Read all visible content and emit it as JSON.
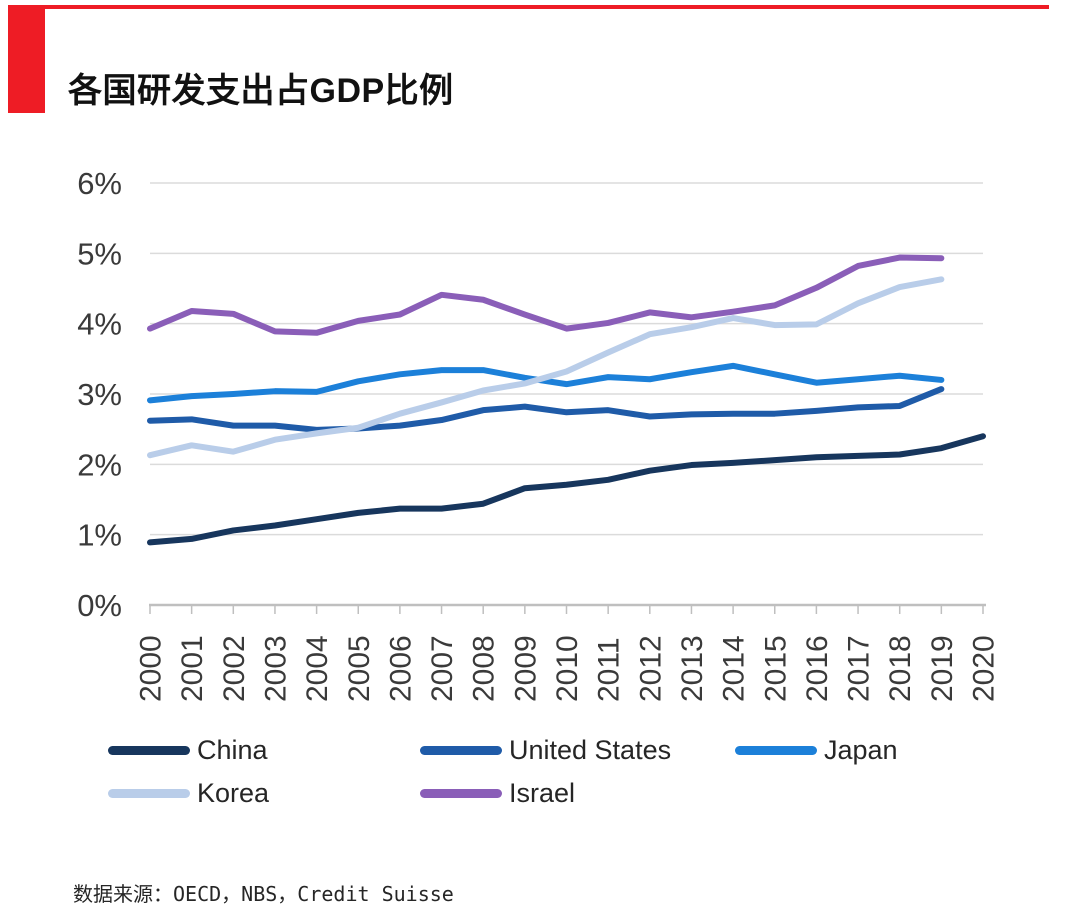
{
  "page": {
    "title": "各国研发支出占GDP比例",
    "source": "数据来源：OECD，NBS，Credit Suisse",
    "accent_color": "#EE1C25"
  },
  "chart_data": {
    "type": "line",
    "title": "各国研发支出占GDP比例",
    "xlabel": "",
    "ylabel": "",
    "ylim": [
      0,
      6
    ],
    "grid": true,
    "legend_position": "bottom",
    "x": [
      2000,
      2001,
      2002,
      2003,
      2004,
      2005,
      2006,
      2007,
      2008,
      2009,
      2010,
      2011,
      2012,
      2013,
      2014,
      2015,
      2016,
      2017,
      2018,
      2019,
      2020
    ],
    "x_tick_labels": [
      "2000",
      "2001",
      "2002",
      "2003",
      "2004",
      "2005",
      "2006",
      "2007",
      "2008",
      "2009",
      "2010",
      "2011",
      "2012",
      "2013",
      "2014",
      "2015",
      "2016",
      "2017",
      "2018",
      "2019",
      "2020"
    ],
    "y_ticks": [
      0,
      1,
      2,
      3,
      4,
      5,
      6
    ],
    "y_tick_labels": [
      "0%",
      "1%",
      "2%",
      "3%",
      "4%",
      "5%",
      "6%"
    ],
    "series": [
      {
        "name": "China",
        "color": "#17365D",
        "values": [
          0.89,
          0.94,
          1.06,
          1.13,
          1.22,
          1.31,
          1.37,
          1.37,
          1.44,
          1.66,
          1.71,
          1.78,
          1.91,
          1.99,
          2.02,
          2.06,
          2.1,
          2.12,
          2.14,
          2.23,
          2.4
        ]
      },
      {
        "name": "United States",
        "color": "#1F5BA8",
        "values": [
          2.62,
          2.64,
          2.55,
          2.55,
          2.49,
          2.51,
          2.55,
          2.63,
          2.77,
          2.82,
          2.74,
          2.77,
          2.68,
          2.71,
          2.72,
          2.72,
          2.76,
          2.81,
          2.83,
          3.07,
          null
        ]
      },
      {
        "name": "Japan",
        "color": "#1C80D9",
        "values": [
          2.91,
          2.97,
          3.0,
          3.04,
          3.03,
          3.18,
          3.28,
          3.34,
          3.34,
          3.23,
          3.14,
          3.24,
          3.21,
          3.31,
          3.4,
          3.28,
          3.16,
          3.21,
          3.26,
          3.2,
          null
        ]
      },
      {
        "name": "Korea",
        "color": "#B9CDE9",
        "values": [
          2.13,
          2.27,
          2.18,
          2.35,
          2.44,
          2.52,
          2.72,
          2.88,
          3.05,
          3.15,
          3.32,
          3.59,
          3.85,
          3.95,
          4.08,
          3.98,
          3.99,
          4.29,
          4.52,
          4.63,
          null
        ]
      },
      {
        "name": "Israel",
        "color": "#8A5EB8",
        "values": [
          3.93,
          4.18,
          4.14,
          3.89,
          3.87,
          4.04,
          4.13,
          4.41,
          4.34,
          4.13,
          3.93,
          4.01,
          4.16,
          4.09,
          4.17,
          4.26,
          4.51,
          4.82,
          4.94,
          4.93,
          null
        ]
      }
    ],
    "colors": {
      "gridline": "#DBDBDB",
      "axis": "#BFBFBF",
      "tick_label": "#3A3A3A"
    }
  }
}
